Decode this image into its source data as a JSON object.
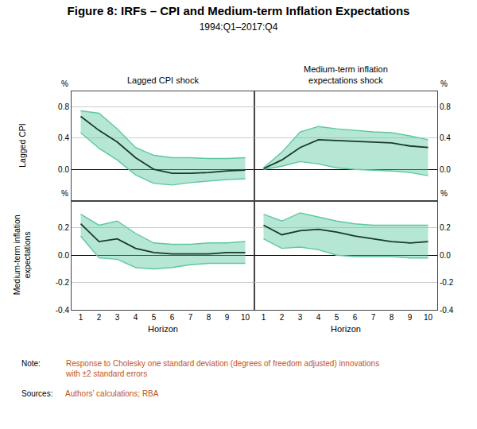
{
  "title": "Figure 8: IRFs – CPI and Medium-term Inflation Expectations",
  "subtitle": "1994:Q1–2017:Q4",
  "annotations": [
    {
      "label": "Note:",
      "text": "Response to Cholesky one standard deviation (degrees of freedom adjusted) innovations\nwith ±2 standard errors",
      "color": "#c0531a"
    },
    {
      "label": "Sources:",
      "text": "Authors’ calculations; RBA",
      "color": "#c0531a"
    }
  ],
  "chart_data": [
    {
      "type": "line",
      "title": "Lagged CPI shock",
      "row_label": "Lagged CPI",
      "ylabel": "%",
      "x": [
        1,
        2,
        3,
        4,
        5,
        6,
        7,
        8,
        9,
        10
      ],
      "xlim": [
        0.5,
        10.5
      ],
      "xticks": [
        1,
        2,
        3,
        4,
        5,
        6,
        7,
        8,
        9,
        10
      ],
      "ylim": [
        -0.4,
        1.0
      ],
      "yticks": [
        {
          "value": 0.0,
          "label": "0.0"
        },
        0.4,
        0.8
      ],
      "grid": "y",
      "tick_labels": "y",
      "series": [
        {
          "type": "band",
          "color": "#5ec8a0",
          "upper": [
            0.75,
            0.72,
            0.52,
            0.28,
            0.18,
            0.15,
            0.15,
            0.14,
            0.14,
            0.15
          ],
          "lower": [
            0.47,
            0.27,
            0.12,
            -0.07,
            -0.18,
            -0.2,
            -0.17,
            -0.15,
            -0.13,
            -0.12
          ]
        },
        {
          "type": "line",
          "color": "#1a3a2a",
          "values": [
            0.68,
            0.5,
            0.35,
            0.15,
            0.0,
            -0.05,
            -0.05,
            -0.04,
            -0.02,
            -0.01
          ]
        }
      ]
    },
    {
      "type": "line",
      "title": "Medium-term inflation\nexpectations shock",
      "ylabel": "%",
      "x": [
        1,
        2,
        3,
        4,
        5,
        6,
        7,
        8,
        9,
        10
      ],
      "xlim": [
        0.5,
        10.5
      ],
      "xticks": [
        1,
        2,
        3,
        4,
        5,
        6,
        7,
        8,
        9,
        10
      ],
      "ylim": [
        -0.4,
        1.0
      ],
      "yticks": [
        {
          "value": 0.0,
          "label": "0.0"
        },
        0.4,
        0.8
      ],
      "grid": "y",
      "tick_labels": "y",
      "series": [
        {
          "type": "band",
          "color": "#5ec8a0",
          "upper": [
            0.02,
            0.22,
            0.48,
            0.55,
            0.52,
            0.5,
            0.48,
            0.47,
            0.43,
            0.38
          ],
          "lower": [
            0.0,
            0.04,
            0.1,
            0.07,
            0.02,
            0.0,
            -0.01,
            -0.02,
            -0.04,
            -0.08
          ]
        },
        {
          "type": "line",
          "color": "#1a3a2a",
          "values": [
            0.01,
            0.12,
            0.28,
            0.38,
            0.37,
            0.36,
            0.35,
            0.34,
            0.3,
            0.28
          ]
        }
      ]
    },
    {
      "type": "line",
      "row_label": "Medium-term inflation\nexpectations",
      "ylabel": "%",
      "xlabel": "Horizon",
      "x": [
        1,
        2,
        3,
        4,
        5,
        6,
        7,
        8,
        9,
        10
      ],
      "xlim": [
        0.5,
        10.5
      ],
      "xticks": [
        1,
        2,
        3,
        4,
        5,
        6,
        7,
        8,
        9,
        10
      ],
      "ylim": [
        -0.4,
        0.4
      ],
      "yticks": [
        -0.4,
        -0.2,
        {
          "value": 0.0,
          "label": "0.0"
        },
        0.2
      ],
      "grid": "y",
      "series": [
        {
          "type": "band",
          "color": "#5ec8a0",
          "upper": [
            0.3,
            0.22,
            0.25,
            0.16,
            0.09,
            0.08,
            0.08,
            0.09,
            0.09,
            0.1
          ],
          "lower": [
            0.14,
            -0.02,
            -0.03,
            -0.09,
            -0.1,
            -0.09,
            -0.07,
            -0.06,
            -0.06,
            -0.06
          ]
        },
        {
          "type": "line",
          "color": "#1a3a2a",
          "values": [
            0.23,
            0.1,
            0.12,
            0.05,
            0.02,
            0.01,
            0.01,
            0.01,
            0.02,
            0.02
          ]
        }
      ]
    },
    {
      "type": "line",
      "ylabel": "%",
      "xlabel": "Horizon",
      "x": [
        1,
        2,
        3,
        4,
        5,
        6,
        7,
        8,
        9,
        10
      ],
      "xlim": [
        0.5,
        10.5
      ],
      "xticks": [
        1,
        2,
        3,
        4,
        5,
        6,
        7,
        8,
        9,
        10
      ],
      "ylim": [
        -0.4,
        0.4
      ],
      "yticks": [
        -0.4,
        -0.2,
        {
          "value": 0.0,
          "label": "0.0"
        },
        0.2
      ],
      "grid": "y",
      "series": [
        {
          "type": "band",
          "color": "#5ec8a0",
          "upper": [
            0.3,
            0.25,
            0.31,
            0.28,
            0.25,
            0.23,
            0.22,
            0.22,
            0.22,
            0.22
          ],
          "lower": [
            0.12,
            0.05,
            0.06,
            0.04,
            0.0,
            -0.01,
            -0.01,
            -0.01,
            -0.02,
            -0.02
          ]
        },
        {
          "type": "line",
          "color": "#1a3a2a",
          "values": [
            0.22,
            0.15,
            0.18,
            0.19,
            0.17,
            0.14,
            0.12,
            0.1,
            0.09,
            0.1
          ]
        }
      ]
    }
  ]
}
